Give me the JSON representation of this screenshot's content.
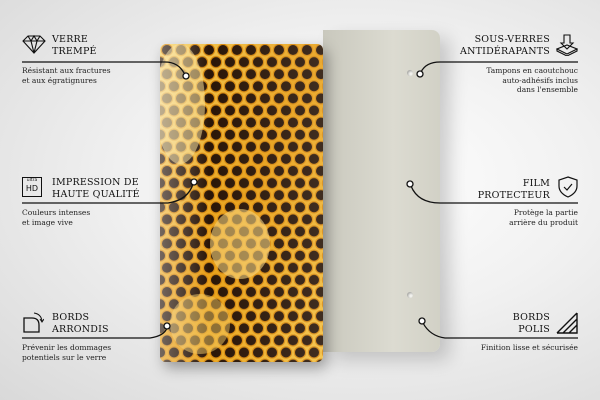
{
  "features": {
    "left": [
      {
        "icon": "diamond-icon",
        "title": [
          "VERRE",
          "TREMPÉ"
        ],
        "desc": [
          "Résistant aux fractures",
          "et aux égratignures"
        ]
      },
      {
        "icon": "ultra-hd-icon",
        "icon_text": [
          "ultra",
          "HD"
        ],
        "title": [
          "IMPRESSION DE",
          "HAUTE QUALITÉ"
        ],
        "desc": [
          "Couleurs intenses",
          "et image vive"
        ]
      },
      {
        "icon": "rounded-corner-icon",
        "title": [
          "BORDS",
          "ARRONDIS"
        ],
        "desc": [
          "Prévenir les dommages",
          "potentiels sur le verre"
        ]
      }
    ],
    "right": [
      {
        "icon": "anti-slip-pad-icon",
        "title": [
          "SOUS-VERRES",
          "ANTIDÉRAPANTS"
        ],
        "desc": [
          "Tampons en caoutchouc",
          "auto-adhésifs inclus",
          "dans l'ensemble"
        ]
      },
      {
        "icon": "shield-check-icon",
        "title": [
          "FILM",
          "PROTECTEUR"
        ],
        "desc": [
          "Protège la partie",
          "arrière du produit"
        ]
      },
      {
        "icon": "polished-edge-icon",
        "title": [
          "BORDS",
          "POLIS"
        ],
        "desc": [
          "Finition lisse et sécurisée"
        ]
      }
    ]
  },
  "colors": {
    "honey": "#f0b020",
    "cell": "#2a1608",
    "line": "#111111",
    "plate": "#d6d5ca"
  }
}
